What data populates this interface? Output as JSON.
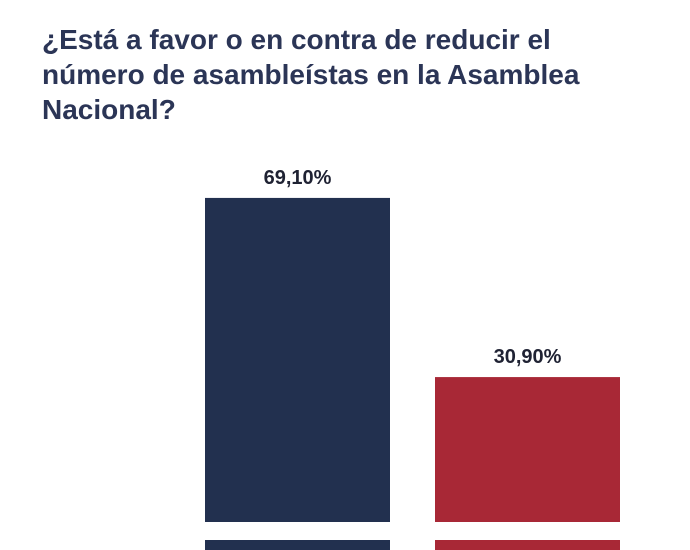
{
  "chart_data": {
    "type": "bar",
    "title": "¿Está a favor o en contra de reducir el número de asambleístas en la Asamblea Nacional?",
    "categories": [
      null,
      null
    ],
    "values": [
      69.1,
      30.9
    ],
    "value_labels": [
      "69,10%",
      "30,90%"
    ],
    "colors": [
      "#22304f",
      "#a82836"
    ]
  }
}
